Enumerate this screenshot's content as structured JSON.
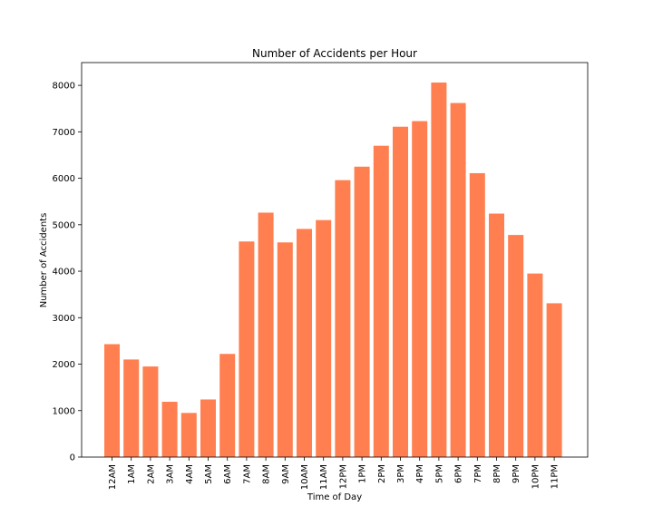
{
  "chart_data": {
    "type": "bar",
    "title": "Number of Accidents per Hour",
    "xlabel": "Time of Day",
    "ylabel": "Number of Accidents",
    "categories": [
      "12AM",
      "1AM",
      "2AM",
      "3AM",
      "4AM",
      "5AM",
      "6AM",
      "7AM",
      "8AM",
      "9AM",
      "10AM",
      "11AM",
      "12PM",
      "1PM",
      "2PM",
      "3PM",
      "4PM",
      "5PM",
      "6PM",
      "7PM",
      "8PM",
      "9PM",
      "10PM",
      "11PM"
    ],
    "values": [
      2430,
      2100,
      1950,
      1190,
      950,
      1240,
      2220,
      4640,
      5260,
      4620,
      4910,
      5100,
      5960,
      6250,
      6700,
      7110,
      7230,
      8060,
      7620,
      6110,
      5240,
      4780,
      3950,
      3310
    ],
    "ylim": [
      0,
      8490
    ],
    "yticks": [
      0,
      1000,
      2000,
      3000,
      4000,
      5000,
      6000,
      7000,
      8000
    ],
    "bar_color": "#ff7f50",
    "grid": false,
    "legend": "none"
  }
}
